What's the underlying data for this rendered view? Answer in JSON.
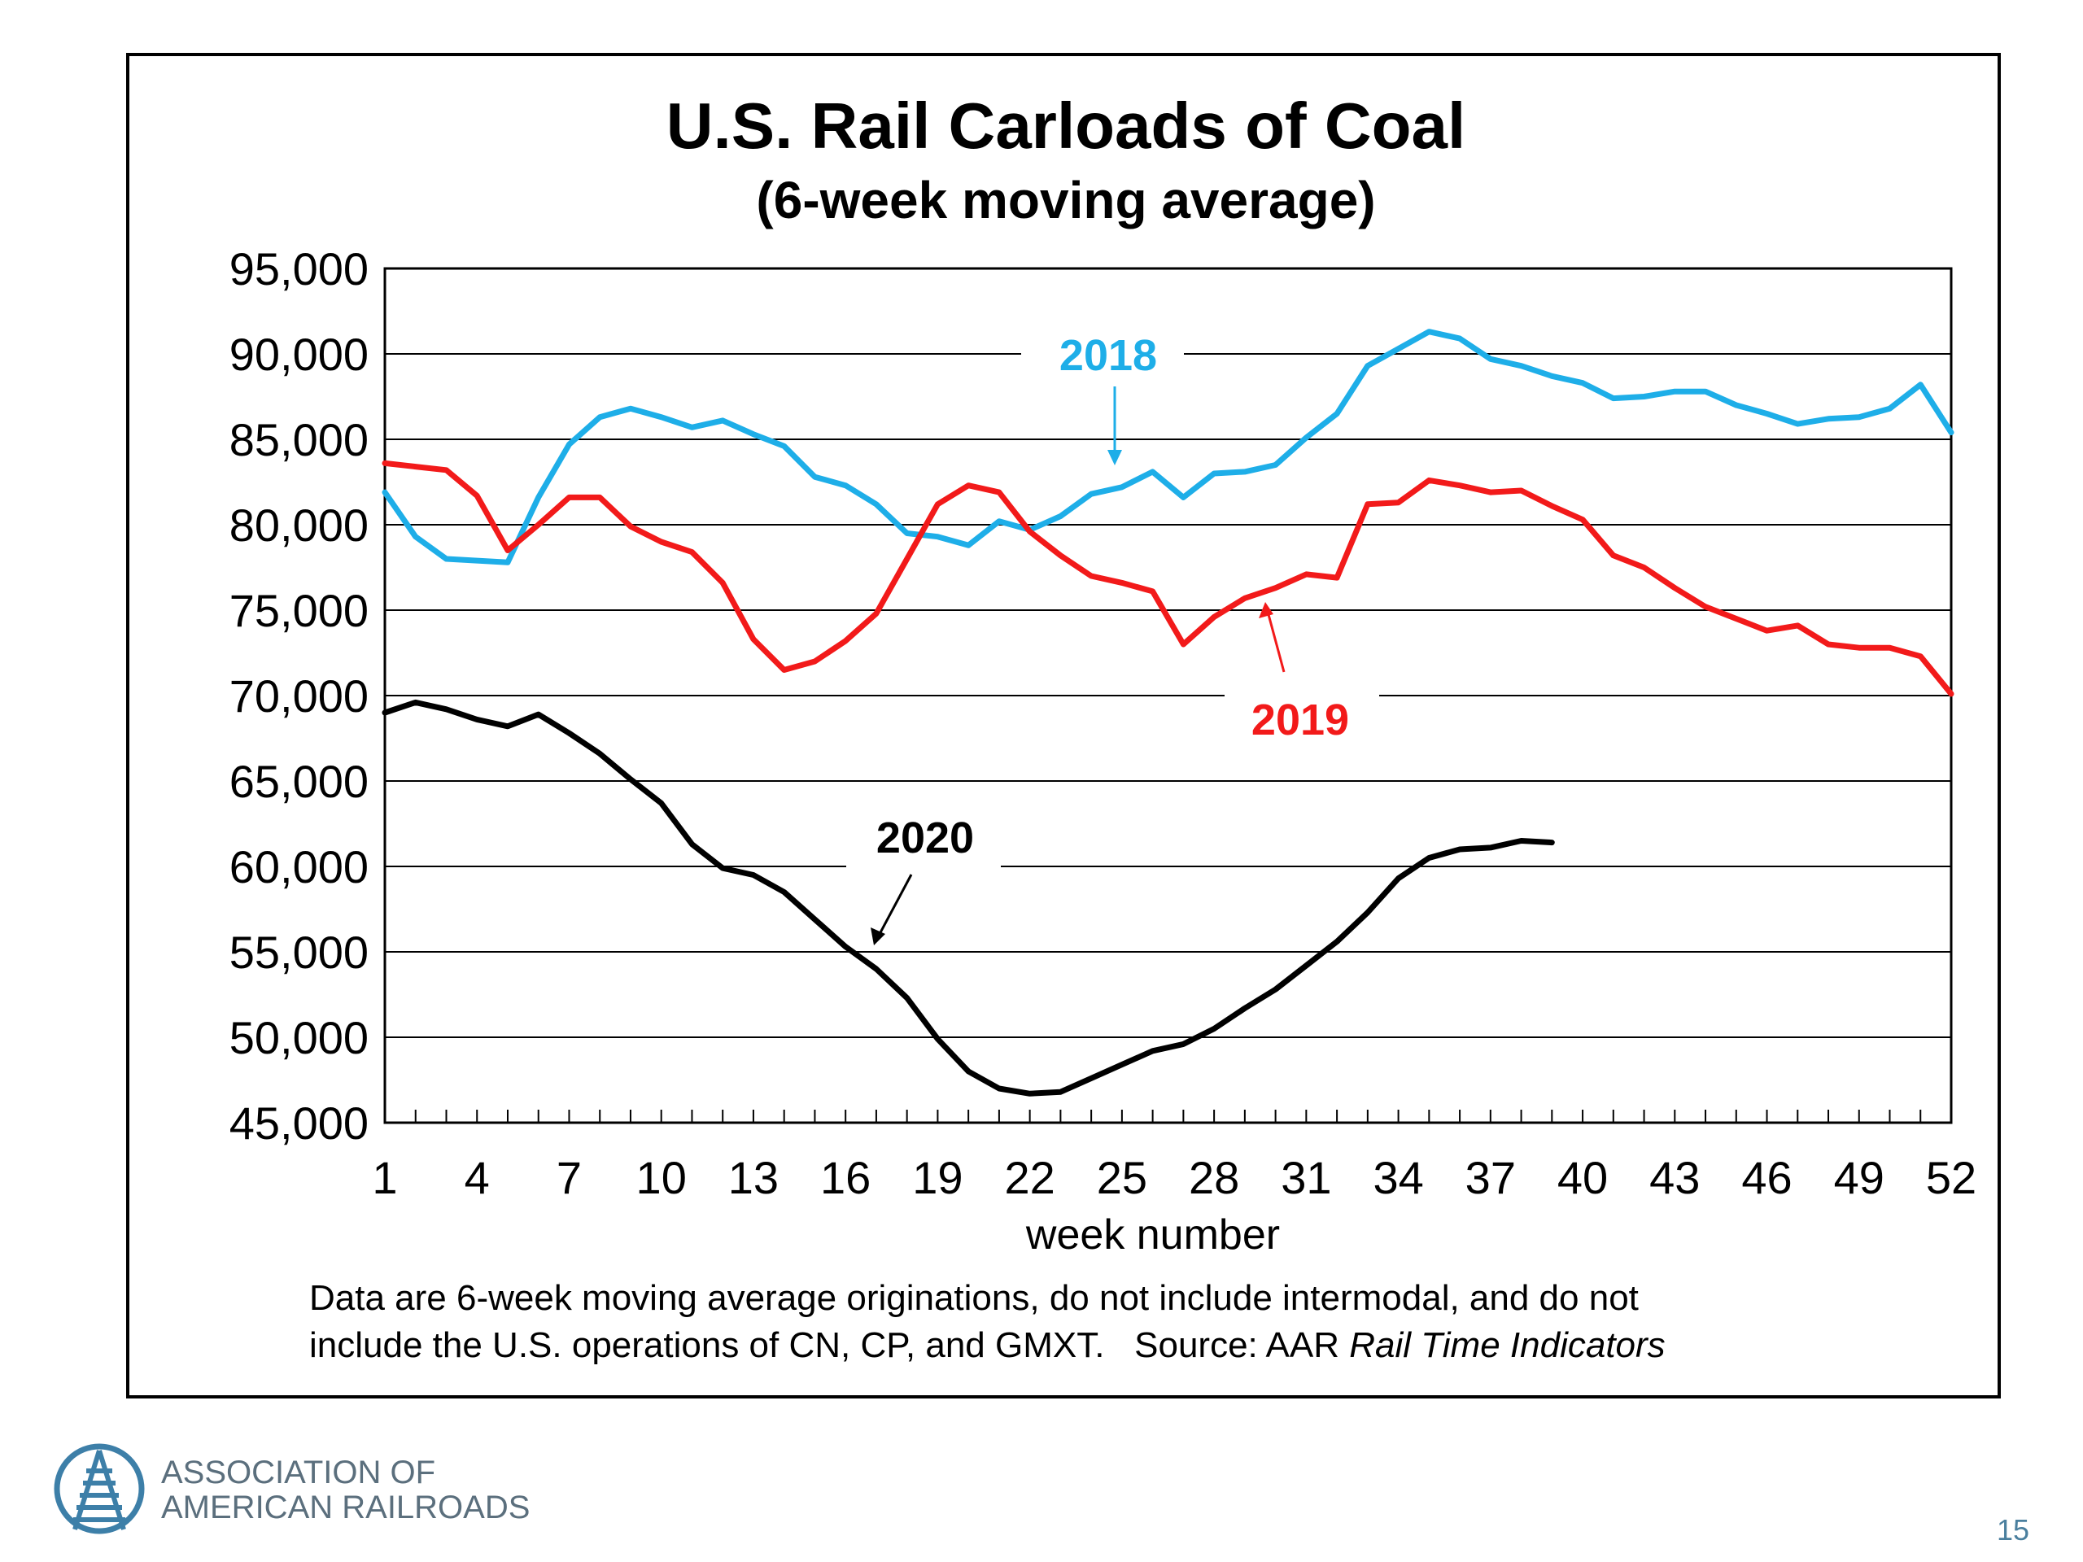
{
  "chart_data": {
    "type": "line",
    "title": "U.S. Rail Carloads of Coal",
    "subtitle": "(6-week moving average)",
    "xlabel": "week number",
    "ylabel": "",
    "xlim": [
      1,
      52
    ],
    "ylim": [
      45000,
      95000
    ],
    "x_ticks": [
      "1",
      "4",
      "7",
      "10",
      "13",
      "16",
      "19",
      "22",
      "25",
      "28",
      "31",
      "34",
      "37",
      "40",
      "43",
      "46",
      "49",
      "52"
    ],
    "y_ticks": [
      "45,000",
      "50,000",
      "55,000",
      "60,000",
      "65,000",
      "70,000",
      "75,000",
      "80,000",
      "85,000",
      "90,000",
      "95,000"
    ],
    "grid": true,
    "legend": "none",
    "series": [
      {
        "name": "2018",
        "color": "#1eaee8",
        "x": [
          1,
          2,
          3,
          4,
          5,
          6,
          7,
          8,
          9,
          10,
          11,
          12,
          13,
          14,
          15,
          16,
          17,
          18,
          19,
          20,
          21,
          22,
          23,
          24,
          25,
          26,
          27,
          28,
          29,
          30,
          31,
          32,
          33,
          34,
          35,
          36,
          37,
          38,
          39,
          40,
          41,
          42,
          43,
          44,
          45,
          46,
          47,
          48,
          49,
          50,
          51,
          52
        ],
        "values": [
          81900,
          79300,
          78000,
          77900,
          77800,
          81600,
          84700,
          86300,
          86800,
          86300,
          85700,
          86100,
          85300,
          84600,
          82800,
          82300,
          81200,
          79500,
          79300,
          78800,
          80200,
          79700,
          80500,
          81800,
          82200,
          83100,
          81600,
          83000,
          83100,
          83500,
          85100,
          86500,
          89300,
          90300,
          91300,
          90900,
          89700,
          89300,
          88700,
          88300,
          87400,
          87500,
          87800,
          87800,
          87000,
          86500,
          85900,
          86200,
          86300,
          86800,
          88200,
          85400
        ]
      },
      {
        "name": "2019",
        "color": "#f21a1a",
        "x": [
          1,
          2,
          3,
          4,
          5,
          6,
          7,
          8,
          9,
          10,
          11,
          12,
          13,
          14,
          15,
          16,
          17,
          18,
          19,
          20,
          21,
          22,
          23,
          24,
          25,
          26,
          27,
          28,
          29,
          30,
          31,
          32,
          33,
          34,
          35,
          36,
          37,
          38,
          39,
          40,
          41,
          42,
          43,
          44,
          45,
          46,
          47,
          48,
          49,
          50,
          51,
          52
        ],
        "values": [
          83600,
          83400,
          83200,
          81700,
          78500,
          80000,
          81600,
          81600,
          79900,
          79000,
          78400,
          76600,
          73300,
          71500,
          72000,
          73200,
          74800,
          78000,
          81200,
          82300,
          81900,
          79600,
          78200,
          77000,
          76600,
          76100,
          73000,
          74600,
          75700,
          76300,
          77100,
          76900,
          81200,
          81300,
          82600,
          82300,
          81900,
          82000,
          81100,
          80300,
          78200,
          77500,
          76300,
          75200,
          74500,
          73800,
          74100,
          73000,
          72800,
          72800,
          72300,
          70100
        ]
      },
      {
        "name": "2020",
        "color": "#000000",
        "x": [
          1,
          2,
          3,
          4,
          5,
          6,
          7,
          8,
          9,
          10,
          11,
          12,
          13,
          14,
          15,
          16,
          17,
          18,
          19,
          20,
          21,
          22,
          23,
          24,
          25,
          26,
          27,
          28,
          29,
          30,
          31,
          32,
          33,
          34,
          35,
          36,
          37,
          38,
          39
        ],
        "values": [
          69000,
          69600,
          69200,
          68600,
          68200,
          68900,
          67800,
          66600,
          65100,
          63700,
          61300,
          59900,
          59500,
          58500,
          56900,
          55300,
          54000,
          52300,
          49900,
          48000,
          47000,
          46700,
          46800,
          47600,
          48400,
          49200,
          49600,
          50500,
          51700,
          52800,
          54200,
          55600,
          57300,
          59300,
          60500,
          61000,
          61100,
          61500,
          61400
        ]
      }
    ],
    "annotations": [
      {
        "text": "2018",
        "color": "#1eaee8"
      },
      {
        "text": "2019",
        "color": "#f21a1a"
      },
      {
        "text": "2020",
        "color": "#000000"
      }
    ]
  },
  "footnote": {
    "line1": "Data are 6-week moving average originations, do not include intermodal, and do not",
    "line2_prefix": "include the U.S. operations of CN, CP, and GMXT.   Source: AAR ",
    "line2_italic": "Rail Time Indicators"
  },
  "logo": {
    "line1": "ASSOCIATION OF",
    "line2": "AMERICAN RAILROADS"
  },
  "page_number": "15"
}
